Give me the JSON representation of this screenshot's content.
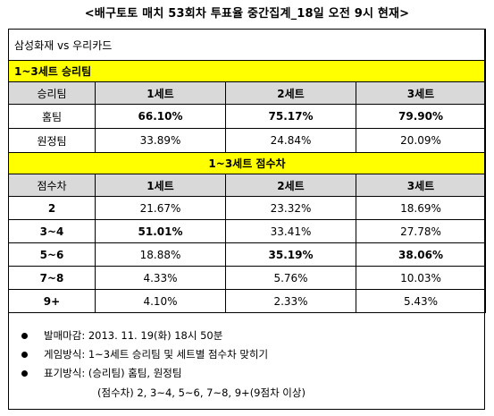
{
  "title": "<배구토토 매치 53회차 투표율 중간집계_18일 오전 9시 현재>",
  "matchup": "삼성화재 vs 우리카드",
  "section1": {
    "heading": "1~3세트 승리팀",
    "columns": [
      "승리팀",
      "1세트",
      "2세트",
      "3세트"
    ],
    "rows": [
      {
        "label": "홈팀",
        "values": [
          "66.10%",
          "75.17%",
          "79.90%"
        ],
        "bold": [
          true,
          true,
          true
        ]
      },
      {
        "label": "원정팀",
        "values": [
          "33.89%",
          "24.84%",
          "20.09%"
        ],
        "bold": [
          false,
          false,
          false
        ]
      }
    ]
  },
  "section2": {
    "heading": "1~3세트 점수차",
    "columns": [
      "점수차",
      "1세트",
      "2세트",
      "3세트"
    ],
    "rows": [
      {
        "label": "2",
        "values": [
          "21.67%",
          "23.32%",
          "18.69%"
        ],
        "bold": [
          false,
          false,
          false
        ]
      },
      {
        "label": "3~4",
        "values": [
          "51.01%",
          "33.41%",
          "27.78%"
        ],
        "bold": [
          true,
          false,
          false
        ]
      },
      {
        "label": "5~6",
        "values": [
          "18.88%",
          "35.19%",
          "38.06%"
        ],
        "bold": [
          false,
          true,
          true
        ]
      },
      {
        "label": "7~8",
        "values": [
          "4.33%",
          "5.76%",
          "10.03%"
        ],
        "bold": [
          false,
          false,
          false
        ]
      },
      {
        "label": "9+",
        "values": [
          "4.10%",
          "2.33%",
          "5.43%"
        ],
        "bold": [
          false,
          false,
          false
        ]
      }
    ]
  },
  "notes": [
    "발매마감: 2013. 11. 19(화) 18시 50분",
    "게임방식: 1~3세트 승리팀 및 세트별 점수차 맞히기",
    "표기방식: (승리팀) 홈팀, 원정팀",
    "(점수차) 2, 3~4, 5~6, 7~8, 9+(9점차 이상)"
  ]
}
